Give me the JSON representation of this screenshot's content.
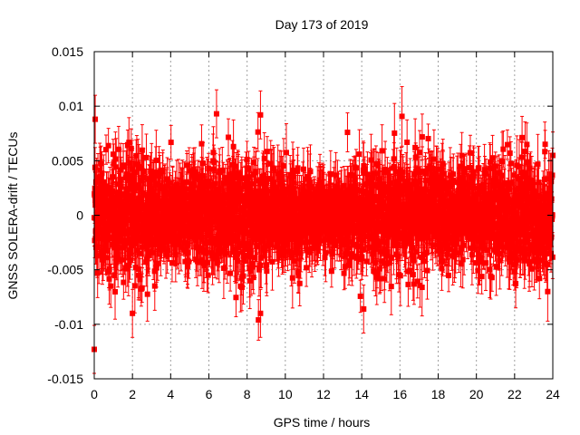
{
  "chart_data": {
    "type": "scatter",
    "title": "Day 173 of 2019",
    "xlabel": "GPS time / hours",
    "ylabel": "GNSS SOLERA-drift / TECUs",
    "xlim": [
      0,
      24
    ],
    "ylim": [
      -0.015,
      0.015
    ],
    "x_ticks": [
      0,
      2,
      4,
      6,
      8,
      10,
      12,
      14,
      16,
      18,
      20,
      22,
      24
    ],
    "x_tick_labels": [
      "0",
      "2",
      "4",
      "6",
      "8",
      "10",
      "12",
      "14",
      "16",
      "18",
      "20",
      "22",
      "24"
    ],
    "y_ticks": [
      -0.015,
      -0.01,
      -0.005,
      0,
      0.005,
      0.01,
      0.015
    ],
    "y_tick_labels": [
      "-0.015",
      "-0.01",
      "-0.005",
      "0",
      "0.005",
      "0.01",
      "0.015"
    ],
    "grid": true,
    "marker_color": "#ff0000",
    "series": [
      {
        "name": "SOLERA drift",
        "style": "points with error bars",
        "n_points": 2880,
        "x_range": [
          0,
          24
        ],
        "typical_value_range": [
          -0.008,
          0.008
        ],
        "typical_error": 0.002,
        "notable_points": [
          {
            "x": 0.0,
            "y": -0.0123
          },
          {
            "x": 0.05,
            "y": 0.0088
          },
          {
            "x": 6.4,
            "y": 0.0093
          },
          {
            "x": 8.7,
            "y": 0.0092
          },
          {
            "x": 8.7,
            "y": -0.009
          },
          {
            "x": 14.1,
            "y": -0.0086
          },
          {
            "x": 2.0,
            "y": -0.009
          }
        ]
      }
    ]
  }
}
